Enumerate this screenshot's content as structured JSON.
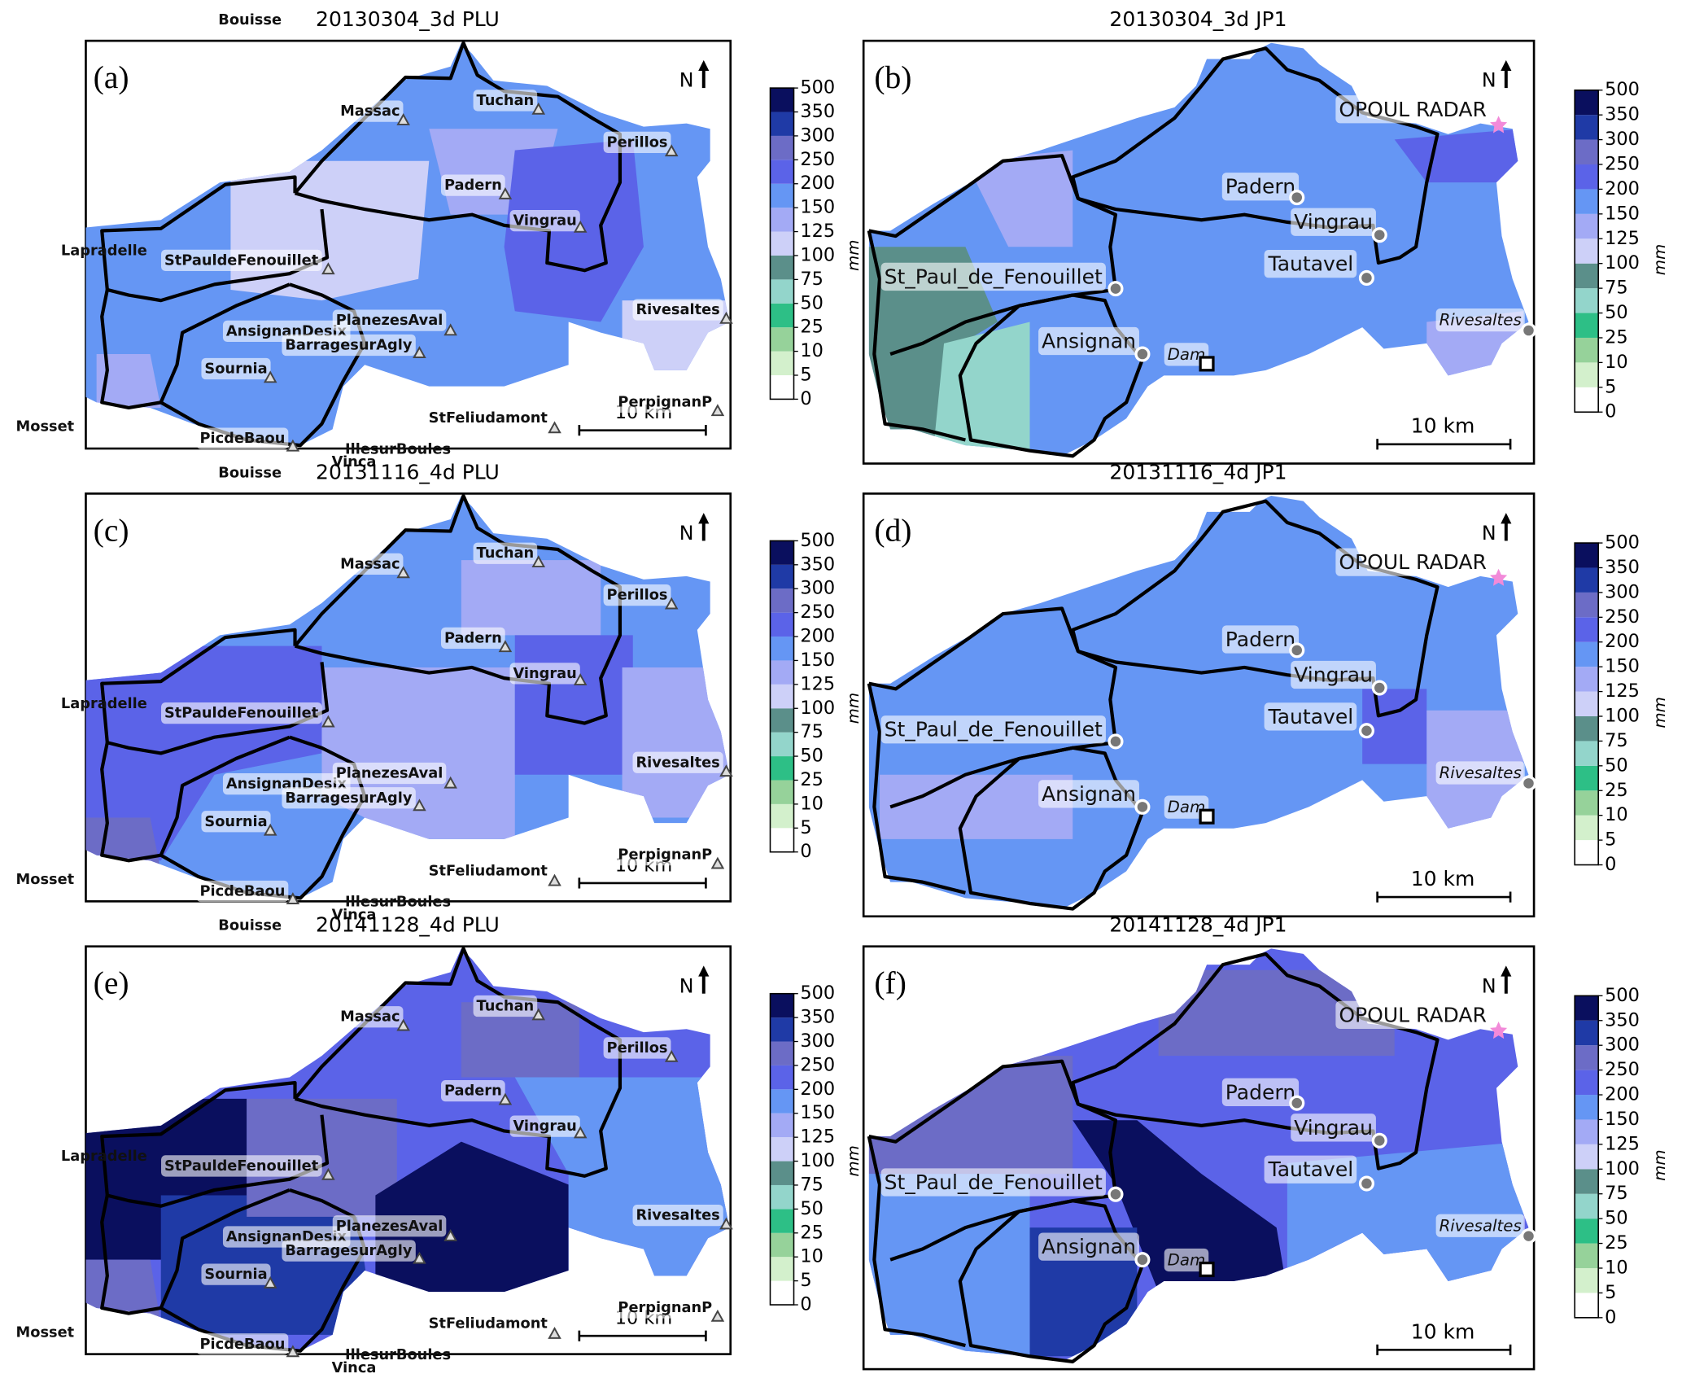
{
  "panels": [
    {
      "letter": "(a)",
      "title": "20130304_3d PLU",
      "north": "N",
      "scale": "10 km",
      "labels": [
        "Bouisse",
        "Massac",
        "Tuchan",
        "Perillos",
        "Padern",
        "Vingrau",
        "Lapradelle",
        "StPauldeFenouillet",
        "Rivesaltes",
        "AnsignanDesix",
        "PlanezesAval",
        "BarragesurAgly",
        "Sournia",
        "PerpignanP",
        "StFeliudamont",
        "Mosset",
        "PicdeBaou",
        "IllesurBoules",
        "Vinca"
      ]
    },
    {
      "letter": "(b)",
      "title": "20130304_3d JP1",
      "north": "N",
      "scale": "10 km",
      "labels": [
        "OPOUL RADAR",
        "Padern",
        "Vingrau",
        "Tautavel",
        "St_Paul_de_Fenouillet",
        "Rivesaltes",
        "Ansignan",
        "Dam"
      ]
    },
    {
      "letter": "(c)",
      "title": "20131116_4d PLU",
      "north": "N",
      "scale": "10 km",
      "labels": [
        "Bouisse",
        "Massac",
        "Tuchan",
        "Perillos",
        "Padern",
        "Vingrau",
        "Lapradelle",
        "StPauldeFenouillet",
        "Rivesaltes",
        "AnsignanDesix",
        "PlanezesAval",
        "BarragesurAgly",
        "Sournia",
        "PerpignanP",
        "StFeliudamont",
        "Mosset",
        "PicdeBaou",
        "IllesurBoules",
        "Vinca"
      ]
    },
    {
      "letter": "(d)",
      "title": "20131116_4d JP1",
      "north": "N",
      "scale": "10 km",
      "labels": [
        "OPOUL RADAR",
        "Padern",
        "Vingrau",
        "Tautavel",
        "St_Paul_de_Fenouillet",
        "Rivesaltes",
        "Ansignan",
        "Dam"
      ]
    },
    {
      "letter": "(e)",
      "title": "20141128_4d PLU",
      "north": "N",
      "scale": "10 km",
      "labels": [
        "Bouisse",
        "Massac",
        "Tuchan",
        "Perillos",
        "Padern",
        "Vingrau",
        "Lapradelle",
        "StPauldeFenouillet",
        "Rivesaltes",
        "AnsignanDesix",
        "PlanezesAval",
        "BarragesurAgly",
        "Sournia",
        "PerpignanP",
        "StFeliudamont",
        "Mosset",
        "PicdeBaou",
        "IllesurBoules",
        "Vinca"
      ]
    },
    {
      "letter": "(f)",
      "title": "20141128_4d JP1",
      "north": "N",
      "scale": "10 km",
      "labels": [
        "OPOUL RADAR",
        "Padern",
        "Vingrau",
        "Tautavel",
        "St_Paul_de_Fenouillet",
        "Rivesaltes",
        "Ansignan",
        "Dam"
      ]
    }
  ],
  "colorbar": {
    "unit": "mm",
    "ticks": [
      0,
      5,
      10,
      25,
      50,
      75,
      100,
      125,
      150,
      200,
      250,
      300,
      350,
      500
    ],
    "colors": [
      "#ffffff",
      "#d3f0cc",
      "#96d29a",
      "#2dbf86",
      "#93d5cb",
      "#5b8f8a",
      "#cdd0f8",
      "#a3aaf5",
      "#6596f4",
      "#5b63e8",
      "#6c6cc6",
      "#1f3aa6",
      "#0a0f5e"
    ]
  }
}
